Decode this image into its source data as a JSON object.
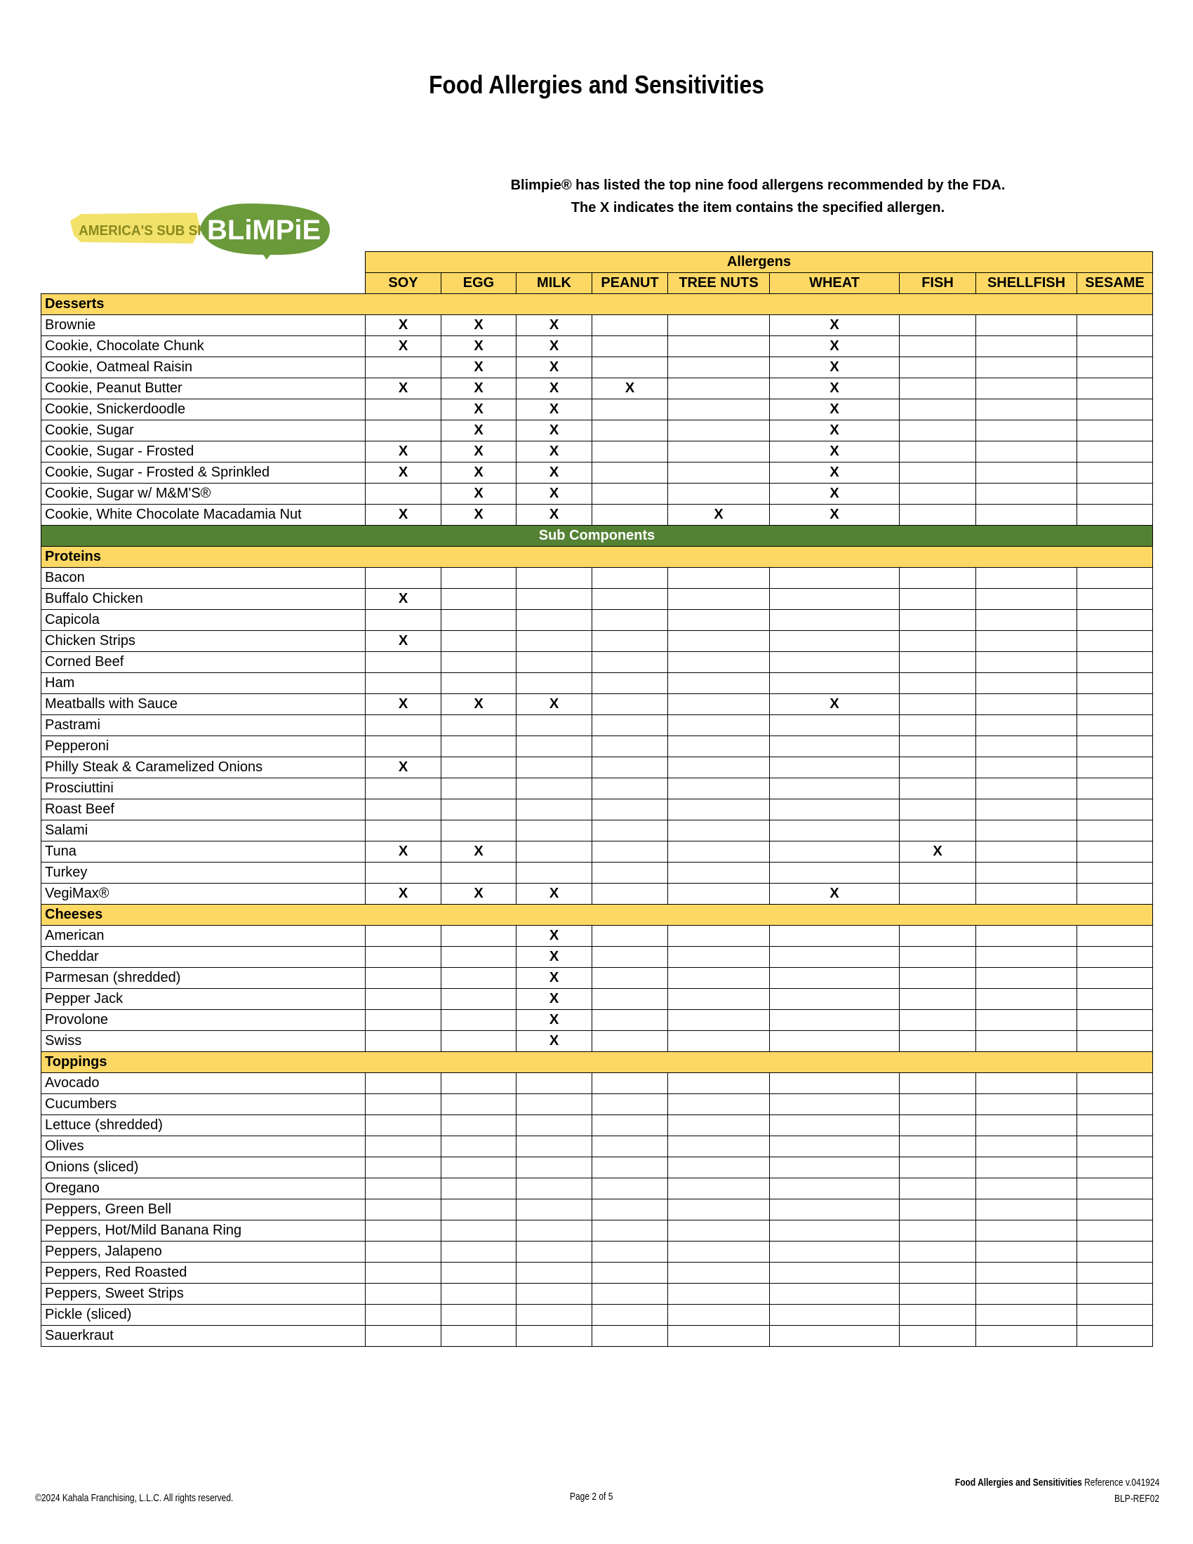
{
  "title": "Food Allergies and Sensitivities",
  "intro": {
    "line1": "Blimpie® has listed the top nine food allergens recommended by the FDA.",
    "line2": "The X indicates the item contains the specified allergen."
  },
  "logo": {
    "tagline": "AMERICA'S SUB SHOP®",
    "brand": "BLIMPIE",
    "colors": {
      "green": "#6a9a3a",
      "yellow": "#f2e26a"
    }
  },
  "colors": {
    "section_bg": "#fdd865",
    "sub_bg": "#548235"
  },
  "table": {
    "group_header": "Allergens",
    "columns": [
      "SOY",
      "EGG",
      "MILK",
      "PEANUT",
      "TREE NUTS",
      "WHEAT",
      "FISH",
      "SHELLFISH",
      "SESAME"
    ],
    "mark": "X",
    "rows": [
      {
        "type": "section",
        "label": "Desserts"
      },
      {
        "label": "Brownie",
        "allergens": [
          "SOY",
          "EGG",
          "MILK",
          "WHEAT"
        ]
      },
      {
        "label": "Cookie, Chocolate Chunk",
        "allergens": [
          "SOY",
          "EGG",
          "MILK",
          "WHEAT"
        ]
      },
      {
        "label": "Cookie, Oatmeal Raisin",
        "allergens": [
          "EGG",
          "MILK",
          "WHEAT"
        ]
      },
      {
        "label": "Cookie, Peanut Butter",
        "allergens": [
          "SOY",
          "EGG",
          "MILK",
          "PEANUT",
          "WHEAT"
        ]
      },
      {
        "label": "Cookie, Snickerdoodle",
        "allergens": [
          "EGG",
          "MILK",
          "WHEAT"
        ]
      },
      {
        "label": "Cookie, Sugar",
        "allergens": [
          "EGG",
          "MILK",
          "WHEAT"
        ]
      },
      {
        "label": "Cookie, Sugar - Frosted",
        "allergens": [
          "SOY",
          "EGG",
          "MILK",
          "WHEAT"
        ]
      },
      {
        "label": "Cookie, Sugar - Frosted & Sprinkled",
        "allergens": [
          "SOY",
          "EGG",
          "MILK",
          "WHEAT"
        ]
      },
      {
        "label": "Cookie, Sugar w/ M&M'S®",
        "allergens": [
          "EGG",
          "MILK",
          "WHEAT"
        ]
      },
      {
        "label": "Cookie, White Chocolate Macadamia Nut",
        "allergens": [
          "SOY",
          "EGG",
          "MILK",
          "TREE NUTS",
          "WHEAT"
        ]
      },
      {
        "type": "sub",
        "label": "Sub Components"
      },
      {
        "type": "section",
        "label": "Proteins"
      },
      {
        "label": "Bacon",
        "allergens": []
      },
      {
        "label": "Buffalo Chicken",
        "allergens": [
          "SOY"
        ]
      },
      {
        "label": "Capicola",
        "allergens": []
      },
      {
        "label": "Chicken Strips",
        "allergens": [
          "SOY"
        ]
      },
      {
        "label": "Corned Beef",
        "allergens": []
      },
      {
        "label": "Ham",
        "allergens": []
      },
      {
        "label": "Meatballs with Sauce",
        "allergens": [
          "SOY",
          "EGG",
          "MILK",
          "WHEAT"
        ]
      },
      {
        "label": "Pastrami",
        "allergens": []
      },
      {
        "label": "Pepperoni",
        "allergens": []
      },
      {
        "label": "Philly Steak & Caramelized Onions",
        "allergens": [
          "SOY"
        ]
      },
      {
        "label": "Prosciuttini",
        "allergens": []
      },
      {
        "label": "Roast Beef",
        "allergens": []
      },
      {
        "label": "Salami",
        "allergens": []
      },
      {
        "label": "Tuna",
        "allergens": [
          "SOY",
          "EGG",
          "FISH"
        ]
      },
      {
        "label": "Turkey",
        "allergens": []
      },
      {
        "label": "VegiMax®",
        "allergens": [
          "SOY",
          "EGG",
          "MILK",
          "WHEAT"
        ]
      },
      {
        "type": "section",
        "label": "Cheeses"
      },
      {
        "label": "American",
        "allergens": [
          "MILK"
        ]
      },
      {
        "label": "Cheddar",
        "allergens": [
          "MILK"
        ]
      },
      {
        "label": "Parmesan (shredded)",
        "allergens": [
          "MILK"
        ]
      },
      {
        "label": "Pepper Jack",
        "allergens": [
          "MILK"
        ]
      },
      {
        "label": "Provolone",
        "allergens": [
          "MILK"
        ]
      },
      {
        "label": "Swiss",
        "allergens": [
          "MILK"
        ]
      },
      {
        "type": "section",
        "label": "Toppings"
      },
      {
        "label": "Avocado",
        "allergens": []
      },
      {
        "label": "Cucumbers",
        "allergens": []
      },
      {
        "label": "Lettuce (shredded)",
        "allergens": []
      },
      {
        "label": "Olives",
        "allergens": []
      },
      {
        "label": "Onions (sliced)",
        "allergens": []
      },
      {
        "label": "Oregano",
        "allergens": []
      },
      {
        "label": "Peppers, Green Bell",
        "allergens": []
      },
      {
        "label": "Peppers, Hot/Mild Banana Ring",
        "allergens": []
      },
      {
        "label": "Peppers, Jalapeno",
        "allergens": []
      },
      {
        "label": "Peppers, Red Roasted",
        "allergens": []
      },
      {
        "label": "Peppers, Sweet Strips",
        "allergens": []
      },
      {
        "label": "Pickle (sliced)",
        "allergens": []
      },
      {
        "label": "Sauerkraut",
        "allergens": []
      }
    ]
  },
  "footer": {
    "copyright": "©2024 Kahala Franchising, L.L.C. All rights reserved.",
    "page": "Page 2 of 5",
    "doc_title": "Food Allergies and Sensitivities",
    "reference": " Reference v.041924",
    "code": "BLP-REF02"
  }
}
